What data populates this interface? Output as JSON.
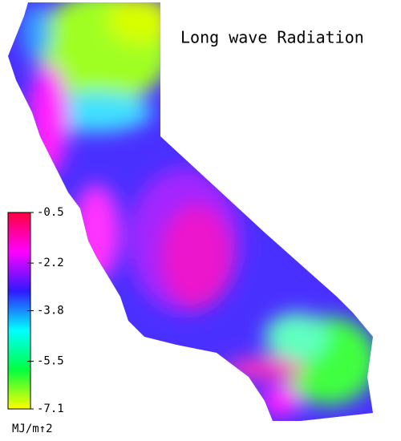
{
  "title": "Long wave Radiation",
  "colorbar": {
    "ticks": [
      -0.5,
      -2.2,
      -3.8,
      -5.5,
      -7.1
    ],
    "unit": "MJ/m↑2",
    "colors": [
      "#ff0040",
      "#ff00ff",
      "#3018ff",
      "#00ffff",
      "#00ff40",
      "#ffff00"
    ]
  }
}
